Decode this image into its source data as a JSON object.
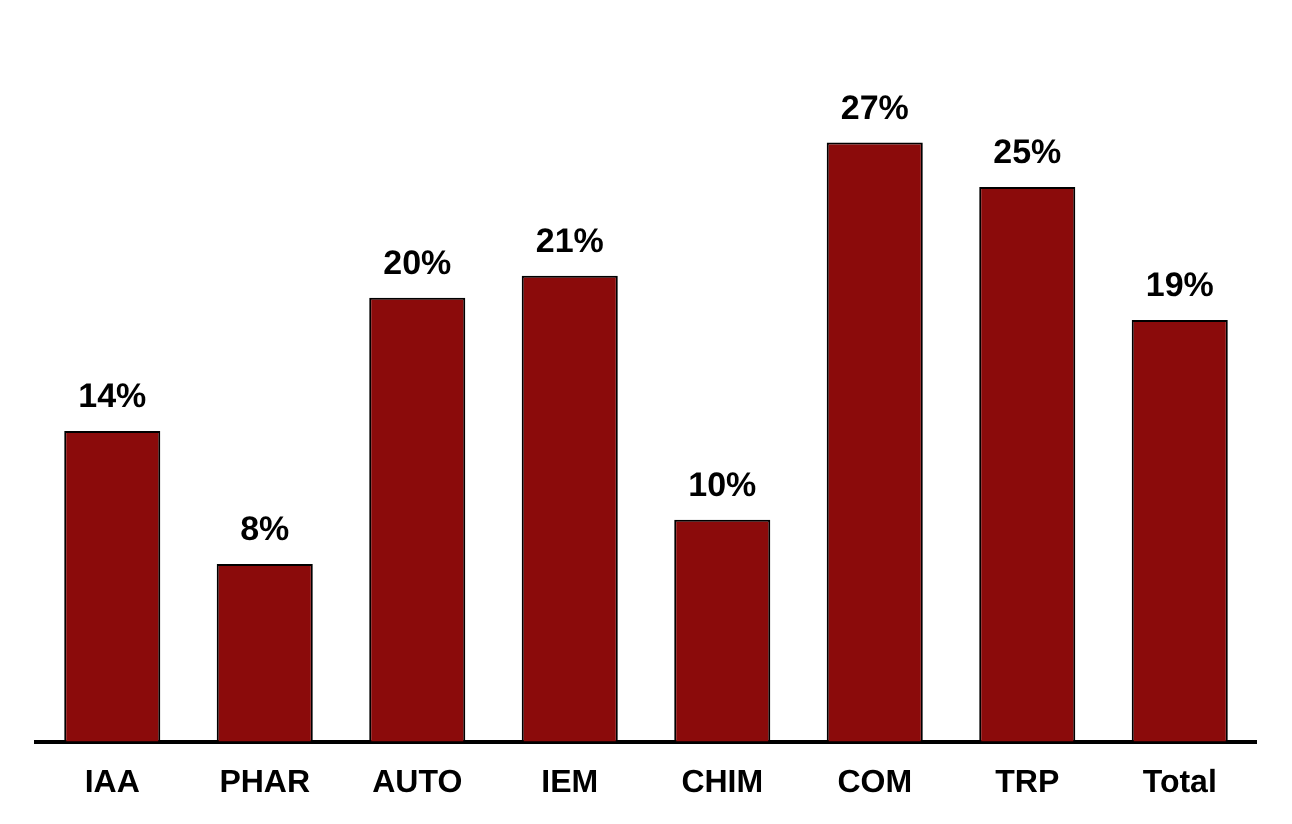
{
  "chart_data": {
    "type": "bar",
    "categories": [
      "IAA",
      "PHAR",
      "AUTO",
      "IEM",
      "CHIM",
      "COM",
      "TRP",
      "Total"
    ],
    "values": [
      14,
      8,
      20,
      21,
      10,
      27,
      25,
      19
    ],
    "value_labels": [
      "14%",
      "8%",
      "20%",
      "21%",
      "10%",
      "27%",
      "25%",
      "19%"
    ],
    "color": "#8b0b0b",
    "grid": false,
    "legend": false
  }
}
